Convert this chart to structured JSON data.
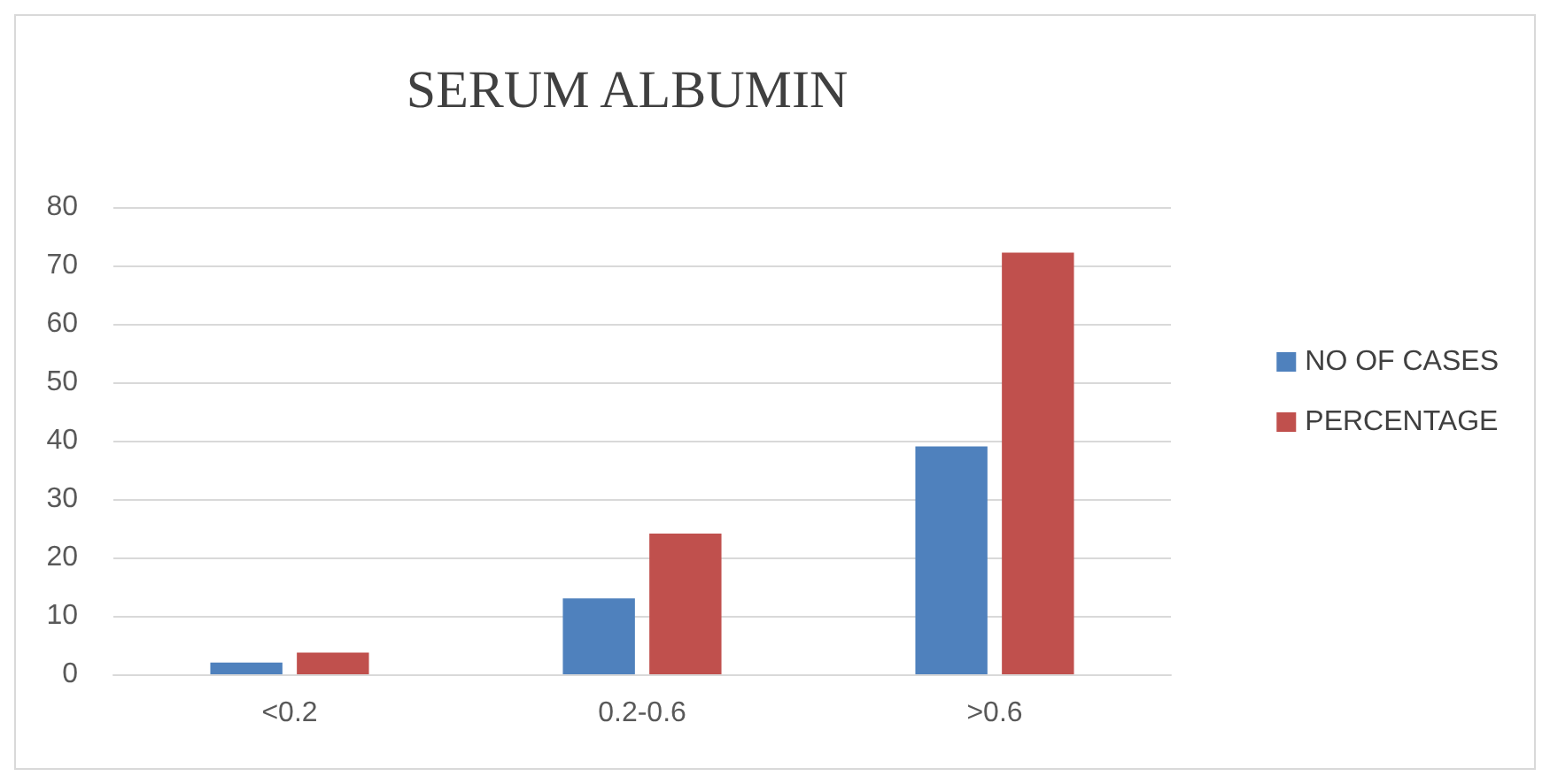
{
  "chart_data": {
    "type": "bar",
    "title": "SERUM ALBUMIN",
    "categories": [
      "<0.2",
      "0.2-0.6",
      ">0.6"
    ],
    "series": [
      {
        "name": "NO OF CASES",
        "color": "#4f81bd",
        "values": [
          2,
          13,
          39
        ]
      },
      {
        "name": "PERCENTAGE",
        "color": "#c0504d",
        "values": [
          3.7,
          24.1,
          72.2
        ]
      }
    ],
    "ylim": [
      0,
      80
    ],
    "yticks": [
      0,
      10,
      20,
      30,
      40,
      50,
      60,
      70,
      80
    ],
    "grid": "y",
    "legend": "right"
  }
}
